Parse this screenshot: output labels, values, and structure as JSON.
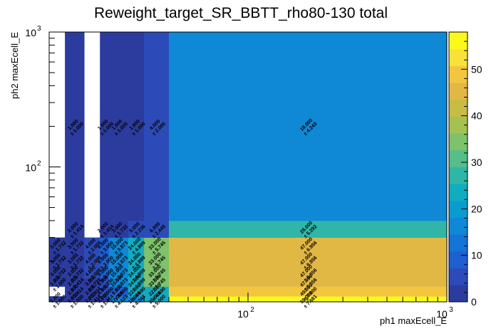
{
  "chart_data": {
    "type": "heatmap",
    "title": "Reweight_target_SR_BBTT_rho80-130 total",
    "xlabel": "ph1 maxEcell_E",
    "ylabel": "ph2 maxEcell_E",
    "xscale": "log",
    "yscale": "log",
    "xlim": [
      10,
      1000
    ],
    "ylim": [
      10,
      1000
    ],
    "x_edges": [
      10,
      12,
      15,
      18,
      20,
      25,
      30,
      40,
      1000
    ],
    "y_edges": [
      10,
      11,
      13,
      15,
      18,
      23,
      30,
      40,
      1000
    ],
    "x_ticks": [
      {
        "value": 100,
        "base": "10",
        "exp": "2"
      },
      {
        "value": 1000,
        "base": "10",
        "exp": "3"
      }
    ],
    "y_ticks": [
      {
        "value": 100,
        "base": "10",
        "exp": "2"
      },
      {
        "value": 1000,
        "base": "10",
        "exp": "3"
      }
    ],
    "zlim": [
      0,
      58
    ],
    "palette_ticks": [
      "0",
      "10",
      "20",
      "30",
      "40",
      "50"
    ],
    "palette_tick_values": [
      0,
      10,
      20,
      30,
      40,
      50
    ],
    "cells": [
      {
        "ix": 0,
        "iy": 0,
        "value": 1,
        "label": "1.000",
        "error": "± 1.000"
      },
      {
        "ix": 1,
        "iy": 0,
        "value": 1,
        "label": "1.000",
        "error": "± 1.000"
      },
      {
        "ix": 2,
        "iy": 0,
        "value": 2,
        "label": "2.000",
        "error": "± 1.414"
      },
      {
        "ix": 3,
        "iy": 0,
        "value": 2,
        "label": "2.000",
        "error": "± 1.414"
      },
      {
        "ix": 4,
        "iy": 0,
        "value": 17,
        "label": "17.000",
        "error": "± 4.123"
      },
      {
        "ix": 5,
        "iy": 0,
        "value": 18,
        "label": "18.000",
        "error": "± 4.243"
      },
      {
        "ix": 6,
        "iy": 0,
        "value": 25,
        "label": "25.000",
        "error": "± 5.000"
      },
      {
        "ix": 7,
        "iy": 0,
        "value": 59,
        "label": "59.000",
        "error": "± 7.681"
      },
      {
        "ix": 0,
        "iy": 1,
        "value": 0,
        "label": "",
        "error": ""
      },
      {
        "ix": 1,
        "iy": 1,
        "value": 2,
        "label": "2.000",
        "error": "± 1.414"
      },
      {
        "ix": 2,
        "iy": 1,
        "value": 2,
        "label": "2.000",
        "error": "± 1.414"
      },
      {
        "ix": 3,
        "iy": 1,
        "value": 4,
        "label": "4.000",
        "error": "± 2.000"
      },
      {
        "ix": 4,
        "iy": 1,
        "value": 9,
        "label": "9.000",
        "error": "± 3.000"
      },
      {
        "ix": 5,
        "iy": 1,
        "value": 22,
        "label": "22.000",
        "error": "± 4.690"
      },
      {
        "ix": 6,
        "iy": 1,
        "value": 22,
        "label": "22.000",
        "error": "± 4.690"
      },
      {
        "ix": 7,
        "iy": 1,
        "value": 49,
        "label": "49.000",
        "error": "± 7.000"
      },
      {
        "ix": 0,
        "iy": 2,
        "value": 1,
        "label": "1.000",
        "error": "± 1.000"
      },
      {
        "ix": 1,
        "iy": 2,
        "value": 2,
        "label": "2.000",
        "error": "± 1.414"
      },
      {
        "ix": 2,
        "iy": 2,
        "value": 3,
        "label": "3.000",
        "error": "± 1.732"
      },
      {
        "ix": 3,
        "iy": 2,
        "value": 5,
        "label": "5.000",
        "error": "± 2.236"
      },
      {
        "ix": 4,
        "iy": 2,
        "value": 15,
        "label": "15.000",
        "error": "± 3.873"
      },
      {
        "ix": 5,
        "iy": 2,
        "value": 24,
        "label": "24.000",
        "error": "± 4.899"
      },
      {
        "ix": 6,
        "iy": 2,
        "value": 33,
        "label": "33.000",
        "error": "± 5.745"
      },
      {
        "ix": 7,
        "iy": 2,
        "value": 47,
        "label": "47.000",
        "error": "± 6.856"
      },
      {
        "ix": 0,
        "iy": 3,
        "value": 3,
        "label": "3.000",
        "error": "± 1.732"
      },
      {
        "ix": 1,
        "iy": 3,
        "value": 3,
        "label": "3.000",
        "error": "± 1.732"
      },
      {
        "ix": 2,
        "iy": 3,
        "value": 4,
        "label": "4.000",
        "error": "± 2.000"
      },
      {
        "ix": 3,
        "iy": 3,
        "value": 9,
        "label": "9.000",
        "error": "± 3.000"
      },
      {
        "ix": 4,
        "iy": 3,
        "value": 15,
        "label": "15.000",
        "error": "± 3.873"
      },
      {
        "ix": 5,
        "iy": 3,
        "value": 24,
        "label": "24.000",
        "error": "± 4.899"
      },
      {
        "ix": 6,
        "iy": 3,
        "value": 33,
        "label": "33.000",
        "error": "± 5.745"
      },
      {
        "ix": 7,
        "iy": 3,
        "value": 47,
        "label": "47.000",
        "error": "± 6.856"
      },
      {
        "ix": 0,
        "iy": 4,
        "value": 3,
        "label": "3.000",
        "error": "± 1.732"
      },
      {
        "ix": 1,
        "iy": 4,
        "value": 3,
        "label": "3.000",
        "error": "± 1.732"
      },
      {
        "ix": 2,
        "iy": 4,
        "value": 4,
        "label": "4.000",
        "error": "± 2.000"
      },
      {
        "ix": 3,
        "iy": 4,
        "value": 9,
        "label": "9.000",
        "error": "± 3.000"
      },
      {
        "ix": 4,
        "iy": 4,
        "value": 15,
        "label": "15.000",
        "error": "± 3.873"
      },
      {
        "ix": 5,
        "iy": 4,
        "value": 24,
        "label": "24.000",
        "error": "± 4.899"
      },
      {
        "ix": 6,
        "iy": 4,
        "value": 33,
        "label": "33.000",
        "error": "± 5.745"
      },
      {
        "ix": 7,
        "iy": 4,
        "value": 47,
        "label": "47.000",
        "error": "± 6.856"
      },
      {
        "ix": 0,
        "iy": 5,
        "value": 3,
        "label": "3.000",
        "error": "± 1.732"
      },
      {
        "ix": 1,
        "iy": 5,
        "value": 3,
        "label": "3.000",
        "error": "± 1.732"
      },
      {
        "ix": 2,
        "iy": 5,
        "value": 4,
        "label": "4.000",
        "error": "± 2.000"
      },
      {
        "ix": 3,
        "iy": 5,
        "value": 9,
        "label": "9.000",
        "error": "± 3.000"
      },
      {
        "ix": 4,
        "iy": 5,
        "value": 15,
        "label": "15.000",
        "error": "± 3.873"
      },
      {
        "ix": 5,
        "iy": 5,
        "value": 24,
        "label": "24.000",
        "error": "± 4.899"
      },
      {
        "ix": 6,
        "iy": 5,
        "value": 33,
        "label": "33.000",
        "error": "± 5.745"
      },
      {
        "ix": 7,
        "iy": 5,
        "value": 47,
        "label": "47.000",
        "error": "± 6.856"
      },
      {
        "ix": 0,
        "iy": 6,
        "value": 0,
        "label": "",
        "error": ""
      },
      {
        "ix": 1,
        "iy": 6,
        "value": 2,
        "label": "2.000",
        "error": "± 1.414"
      },
      {
        "ix": 2,
        "iy": 6,
        "value": 0,
        "label": "",
        "error": ""
      },
      {
        "ix": 3,
        "iy": 6,
        "value": 2,
        "label": "2.000",
        "error": "± 1.414"
      },
      {
        "ix": 4,
        "iy": 6,
        "value": 3,
        "label": "3.000",
        "error": "± 1.732"
      },
      {
        "ix": 5,
        "iy": 6,
        "value": 5,
        "label": "5.000",
        "error": "± 2.236"
      },
      {
        "ix": 6,
        "iy": 6,
        "value": 6,
        "label": "6.000",
        "error": "± 2.449"
      },
      {
        "ix": 7,
        "iy": 6,
        "value": 28,
        "label": "28.000",
        "error": "± 5.292"
      },
      {
        "ix": 0,
        "iy": 7,
        "value": 0,
        "label": "",
        "error": ""
      },
      {
        "ix": 1,
        "iy": 7,
        "value": 1,
        "label": "1.000",
        "error": "± 1.000"
      },
      {
        "ix": 2,
        "iy": 7,
        "value": 0,
        "label": "",
        "error": ""
      },
      {
        "ix": 3,
        "iy": 7,
        "value": 1,
        "label": "1.000",
        "error": "± 1.000"
      },
      {
        "ix": 4,
        "iy": 7,
        "value": 1,
        "label": "1.000",
        "error": "± 1.000"
      },
      {
        "ix": 5,
        "iy": 7,
        "value": 1,
        "label": "1.000",
        "error": "± 1.000"
      },
      {
        "ix": 6,
        "iy": 7,
        "value": 4,
        "label": "4.000",
        "error": "± 2.000"
      },
      {
        "ix": 7,
        "iy": 7,
        "value": 18,
        "label": "18.000",
        "error": "± 4.243"
      }
    ],
    "palette_colors": [
      "#2b3b9e",
      "#2c4bb8",
      "#1e5fd2",
      "#1474d8",
      "#0f88d6",
      "#0b9ccf",
      "#12acc0",
      "#2fb6a8",
      "#55be8b",
      "#7ec26c",
      "#a6c152",
      "#c8bd44",
      "#e2b845",
      "#f2c73f",
      "#f8e23a",
      "#f9f91a"
    ]
  }
}
